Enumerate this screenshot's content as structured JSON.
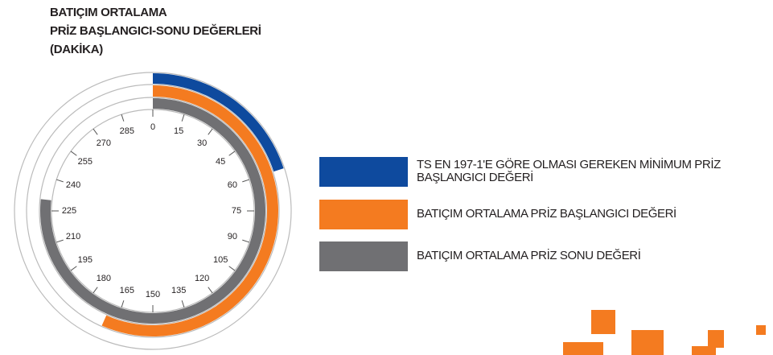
{
  "chart_data": {
    "type": "radial-bar",
    "title": [
      "BATIÇIM ORTALAMA",
      "PRİZ BAŞLANGICI-SONU DEĞERLERİ",
      "(DAKİKA)"
    ],
    "lim": [
      0,
      300
    ],
    "ticks": [
      0,
      15,
      30,
      45,
      60,
      75,
      90,
      105,
      120,
      135,
      150,
      165,
      180,
      195,
      210,
      225,
      240,
      255,
      270,
      285
    ],
    "series": [
      {
        "name": "TS EN 197-1'E GÖRE OLMASI GEREKEN MİNİMUM PRİZ BAŞLANGICI DEĞERİ",
        "color": "#0e4a9e",
        "values": [
          60
        ]
      },
      {
        "name": "BATIÇIM ORTALAMA PRİZ BAŞLANGICI DEĞERİ",
        "color": "#f47b20",
        "values": [
          170
        ]
      },
      {
        "name": "BATIÇIM ORTALAMA PRİZ SONU DEĞERİ",
        "color": "#707073",
        "values": [
          230
        ]
      }
    ]
  }
}
